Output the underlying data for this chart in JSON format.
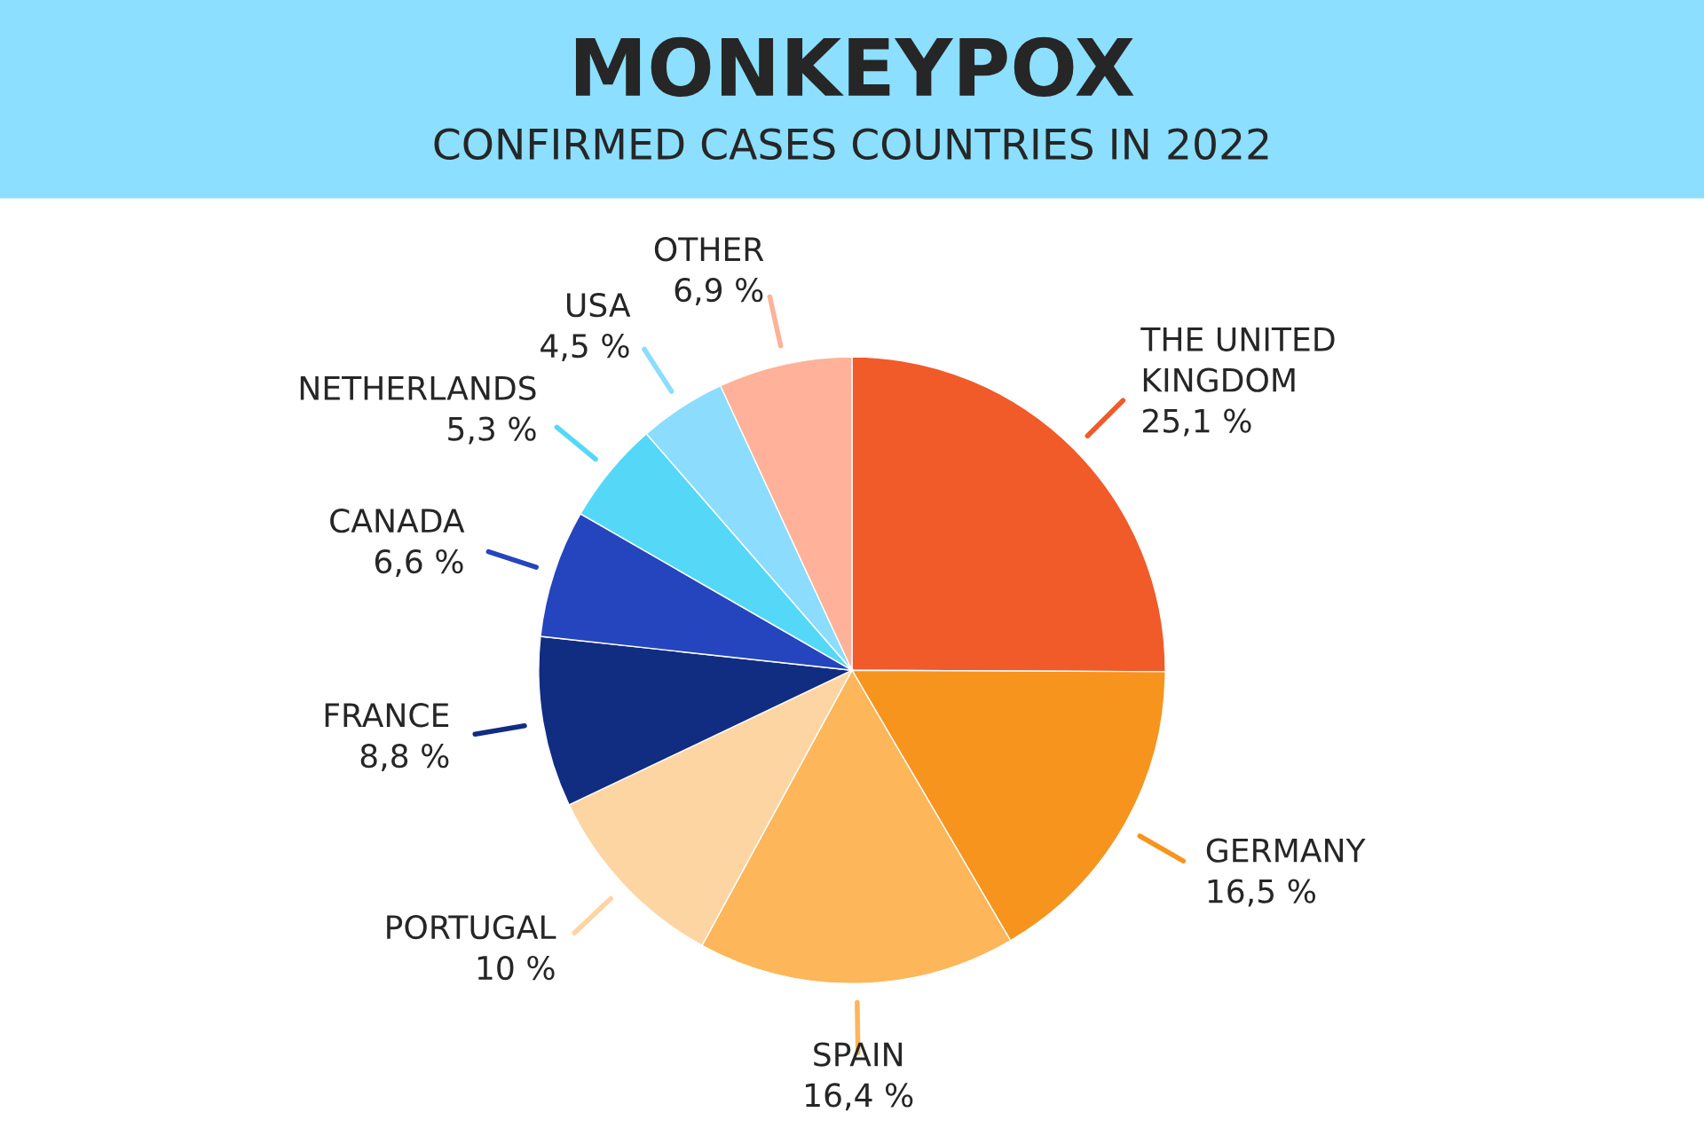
{
  "chart_data": {
    "type": "pie",
    "title": "MONKEYPOX",
    "subtitle": "CONFIRMED CASES COUNTRIES IN 2022",
    "categories": [
      "THE UNITED\nKINGDOM",
      "GERMANY",
      "SPAIN",
      "PORTUGAL",
      "FRANCE",
      "CANADA",
      "NETHERLANDS",
      "USA",
      "OTHER"
    ],
    "values": [
      25.1,
      16.5,
      16.4,
      10,
      8.8,
      6.6,
      5.3,
      4.5,
      6.9
    ],
    "value_labels": [
      "25,1 %",
      "16,5 %",
      "16,4 %",
      "10 %",
      "8,8 %",
      "6,6 %",
      "5,3 %",
      "4,5 %",
      "6,9 %"
    ],
    "colors": [
      "#f15a29",
      "#f7941d",
      "#fdb659",
      "#fdd5a3",
      "#112d82",
      "#2545be",
      "#55d8f7",
      "#8cdcfd",
      "#ffb299"
    ]
  }
}
